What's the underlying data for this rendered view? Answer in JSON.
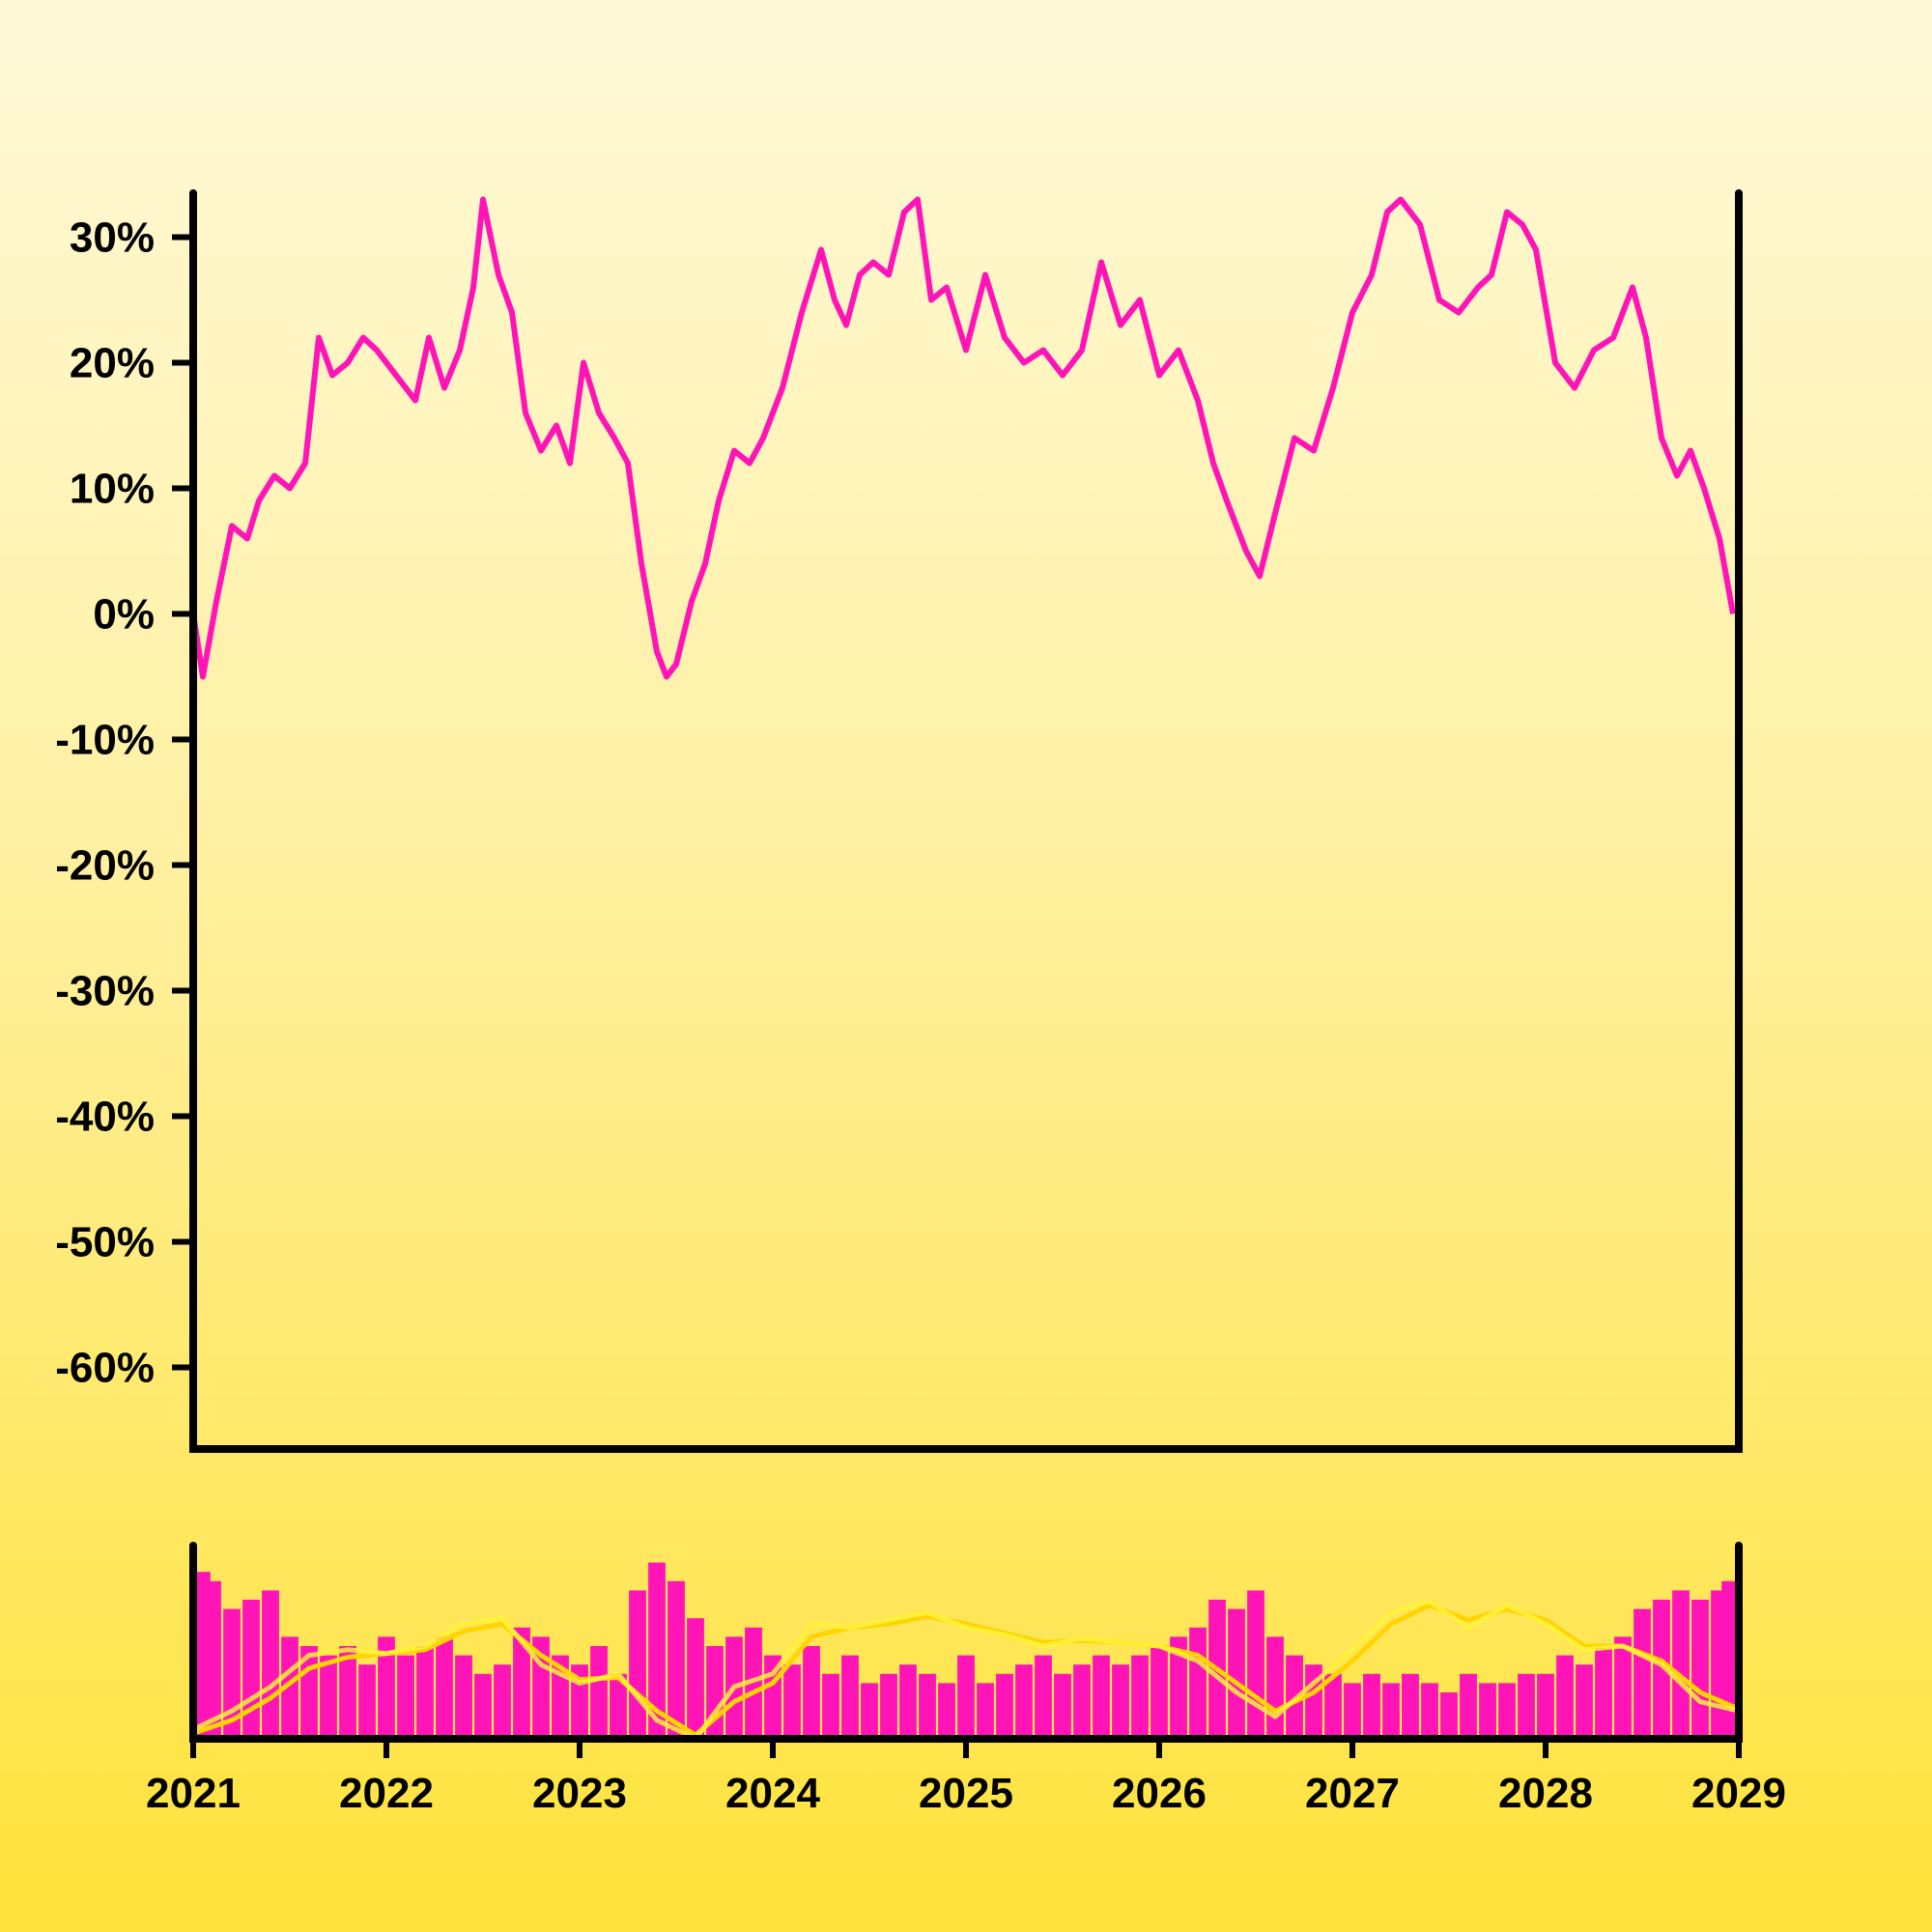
{
  "chart_data": {
    "type": "line",
    "title": "",
    "xlabel": "",
    "ylabel": "",
    "x_ticks": [
      "2021",
      "2022",
      "2023",
      "2024",
      "2025",
      "2026",
      "2027",
      "2028",
      "2029"
    ],
    "xlim": [
      2021,
      2029
    ],
    "y_ticks": [
      "30%",
      "20%",
      "10%",
      "0%",
      "-10%",
      "-20%",
      "-30%",
      "-40%",
      "-50%",
      "-60%"
    ],
    "y_tick_values": [
      30,
      20,
      10,
      0,
      -10,
      -20,
      -30,
      -40,
      -50,
      -60
    ],
    "ylim": [
      -66.5,
      33.5
    ],
    "grid": false,
    "colors": {
      "line": "#ff14b8",
      "volume": "#ff14b8",
      "ma_fast": "#fff23a",
      "ma_slow": "#ffd400",
      "axis": "#000000"
    },
    "series": [
      {
        "values_x": [
          2021.0,
          2021.05,
          2021.12,
          2021.2,
          2021.28,
          2021.34,
          2021.42,
          2021.5,
          2021.58,
          2021.65,
          2021.72,
          2021.8,
          2021.88,
          2021.95,
          2022.05,
          2022.15,
          2022.22,
          2022.3,
          2022.38,
          2022.45,
          2022.5,
          2022.58,
          2022.65,
          2022.72,
          2022.8,
          2022.88,
          2022.95,
          2023.02,
          2023.1,
          2023.18,
          2023.25,
          2023.32,
          2023.4,
          2023.45,
          2023.5,
          2023.58,
          2023.65,
          2023.72,
          2023.8,
          2023.88,
          2023.95,
          2024.05,
          2024.15,
          2024.25,
          2024.32,
          2024.38,
          2024.45,
          2024.52,
          2024.6,
          2024.68,
          2024.75,
          2024.82,
          2024.9,
          2025.0,
          2025.1,
          2025.2,
          2025.3,
          2025.4,
          2025.5,
          2025.6,
          2025.7,
          2025.8,
          2025.9,
          2026.0,
          2026.1,
          2026.2,
          2026.28,
          2026.35,
          2026.45,
          2026.52,
          2026.6,
          2026.7,
          2026.8,
          2026.9,
          2027.0,
          2027.1,
          2027.18,
          2027.25,
          2027.35,
          2027.45,
          2027.55,
          2027.65,
          2027.72,
          2027.8,
          2027.88,
          2027.95,
          2028.05,
          2028.15,
          2028.25,
          2028.35,
          2028.45,
          2028.52,
          2028.6,
          2028.68,
          2028.75,
          2028.82,
          2028.9,
          2028.97
        ],
        "values": [
          0,
          -5,
          1,
          7,
          6,
          9,
          11,
          10,
          12,
          22,
          19,
          20,
          22,
          21,
          19,
          17,
          22,
          18,
          21,
          26,
          33,
          27,
          24,
          16,
          13,
          15,
          12,
          20,
          16,
          14,
          12,
          4,
          -3,
          -5,
          -4,
          1,
          4,
          9,
          13,
          12,
          14,
          18,
          24,
          29,
          25,
          23,
          27,
          28,
          27,
          32,
          33,
          25,
          26,
          21,
          27,
          22,
          20,
          21,
          19,
          21,
          28,
          23,
          25,
          19,
          21,
          17,
          12,
          9,
          5,
          3,
          8,
          14,
          13,
          18,
          24,
          27,
          32,
          33,
          31,
          25,
          24,
          26,
          27,
          32,
          31,
          29,
          20,
          18,
          21,
          22,
          26,
          22,
          14,
          11,
          13,
          10,
          6,
          0
        ]
      },
      {
        "type": "bar",
        "panel": "volume",
        "values_x": [
          2021.0,
          2021.1,
          2021.2,
          2021.3,
          2021.4,
          2021.5,
          2021.6,
          2021.7,
          2021.8,
          2021.9,
          2022.0,
          2022.1,
          2022.2,
          2022.3,
          2022.4,
          2022.5,
          2022.6,
          2022.7,
          2022.8,
          2022.9,
          2023.0,
          2023.1,
          2023.2,
          2023.3,
          2023.4,
          2023.5,
          2023.6,
          2023.7,
          2023.8,
          2023.9,
          2024.0,
          2024.1,
          2024.2,
          2024.3,
          2024.4,
          2024.5,
          2024.6,
          2024.7,
          2024.8,
          2024.9,
          2025.0,
          2025.1,
          2025.2,
          2025.3,
          2025.4,
          2025.5,
          2025.6,
          2025.7,
          2025.8,
          2025.9,
          2026.0,
          2026.1,
          2026.2,
          2026.3,
          2026.4,
          2026.5,
          2026.6,
          2026.7,
          2026.8,
          2026.9,
          2027.0,
          2027.1,
          2027.2,
          2027.3,
          2027.4,
          2027.5,
          2027.6,
          2027.7,
          2027.8,
          2027.9,
          2028.0,
          2028.1,
          2028.2,
          2028.3,
          2028.4,
          2028.5,
          2028.6,
          2028.7,
          2028.8,
          2028.9,
          2029.0
        ],
        "values": [
          0.9,
          0.85,
          0.7,
          0.75,
          0.8,
          0.55,
          0.5,
          0.45,
          0.5,
          0.4,
          0.55,
          0.45,
          0.5,
          0.55,
          0.45,
          0.35,
          0.4,
          0.6,
          0.55,
          0.45,
          0.4,
          0.5,
          0.35,
          0.8,
          0.95,
          0.85,
          0.65,
          0.5,
          0.55,
          0.6,
          0.45,
          0.4,
          0.5,
          0.35,
          0.45,
          0.3,
          0.35,
          0.4,
          0.35,
          0.3,
          0.45,
          0.3,
          0.35,
          0.4,
          0.45,
          0.35,
          0.4,
          0.45,
          0.4,
          0.45,
          0.5,
          0.55,
          0.6,
          0.75,
          0.7,
          0.8,
          0.55,
          0.45,
          0.4,
          0.35,
          0.3,
          0.35,
          0.3,
          0.35,
          0.3,
          0.25,
          0.35,
          0.3,
          0.3,
          0.35,
          0.35,
          0.45,
          0.4,
          0.5,
          0.55,
          0.7,
          0.75,
          0.8,
          0.75,
          0.8,
          0.85
        ]
      },
      {
        "panel": "volume",
        "values_x": [
          2021.0,
          2021.2,
          2021.4,
          2021.6,
          2021.8,
          2022.0,
          2022.2,
          2022.4,
          2022.6,
          2022.8,
          2023.0,
          2023.2,
          2023.4,
          2023.6,
          2023.8,
          2024.0,
          2024.2,
          2024.4,
          2024.6,
          2024.8,
          2025.0,
          2025.2,
          2025.4,
          2025.6,
          2025.8,
          2026.0,
          2026.2,
          2026.4,
          2026.6,
          2026.8,
          2027.0,
          2027.2,
          2027.4,
          2027.6,
          2027.8,
          2028.0,
          2028.2,
          2028.4,
          2028.6,
          2028.8,
          2029.0
        ],
        "values": [
          0.05,
          0.15,
          0.28,
          0.45,
          0.48,
          0.46,
          0.5,
          0.62,
          0.65,
          0.4,
          0.3,
          0.35,
          0.1,
          0.0,
          0.28,
          0.35,
          0.62,
          0.6,
          0.64,
          0.68,
          0.6,
          0.56,
          0.5,
          0.54,
          0.52,
          0.5,
          0.42,
          0.25,
          0.12,
          0.3,
          0.48,
          0.68,
          0.74,
          0.6,
          0.72,
          0.62,
          0.48,
          0.5,
          0.4,
          0.2,
          0.15
        ]
      },
      {
        "panel": "volume",
        "values_x": [
          2021.0,
          2021.2,
          2021.4,
          2021.6,
          2021.8,
          2022.0,
          2022.2,
          2022.4,
          2022.6,
          2022.8,
          2023.0,
          2023.2,
          2023.4,
          2023.6,
          2023.8,
          2024.0,
          2024.2,
          2024.4,
          2024.6,
          2024.8,
          2025.0,
          2025.2,
          2025.4,
          2025.6,
          2025.8,
          2026.0,
          2026.2,
          2026.4,
          2026.6,
          2026.8,
          2027.0,
          2027.2,
          2027.4,
          2027.6,
          2027.8,
          2028.0,
          2028.2,
          2028.4,
          2028.6,
          2028.8,
          2029.0
        ],
        "values": [
          0.03,
          0.1,
          0.22,
          0.38,
          0.44,
          0.46,
          0.48,
          0.58,
          0.62,
          0.45,
          0.32,
          0.33,
          0.15,
          0.02,
          0.2,
          0.3,
          0.55,
          0.6,
          0.62,
          0.66,
          0.62,
          0.57,
          0.52,
          0.53,
          0.52,
          0.5,
          0.45,
          0.3,
          0.15,
          0.25,
          0.42,
          0.62,
          0.72,
          0.64,
          0.7,
          0.64,
          0.5,
          0.5,
          0.42,
          0.25,
          0.16
        ]
      }
    ]
  }
}
